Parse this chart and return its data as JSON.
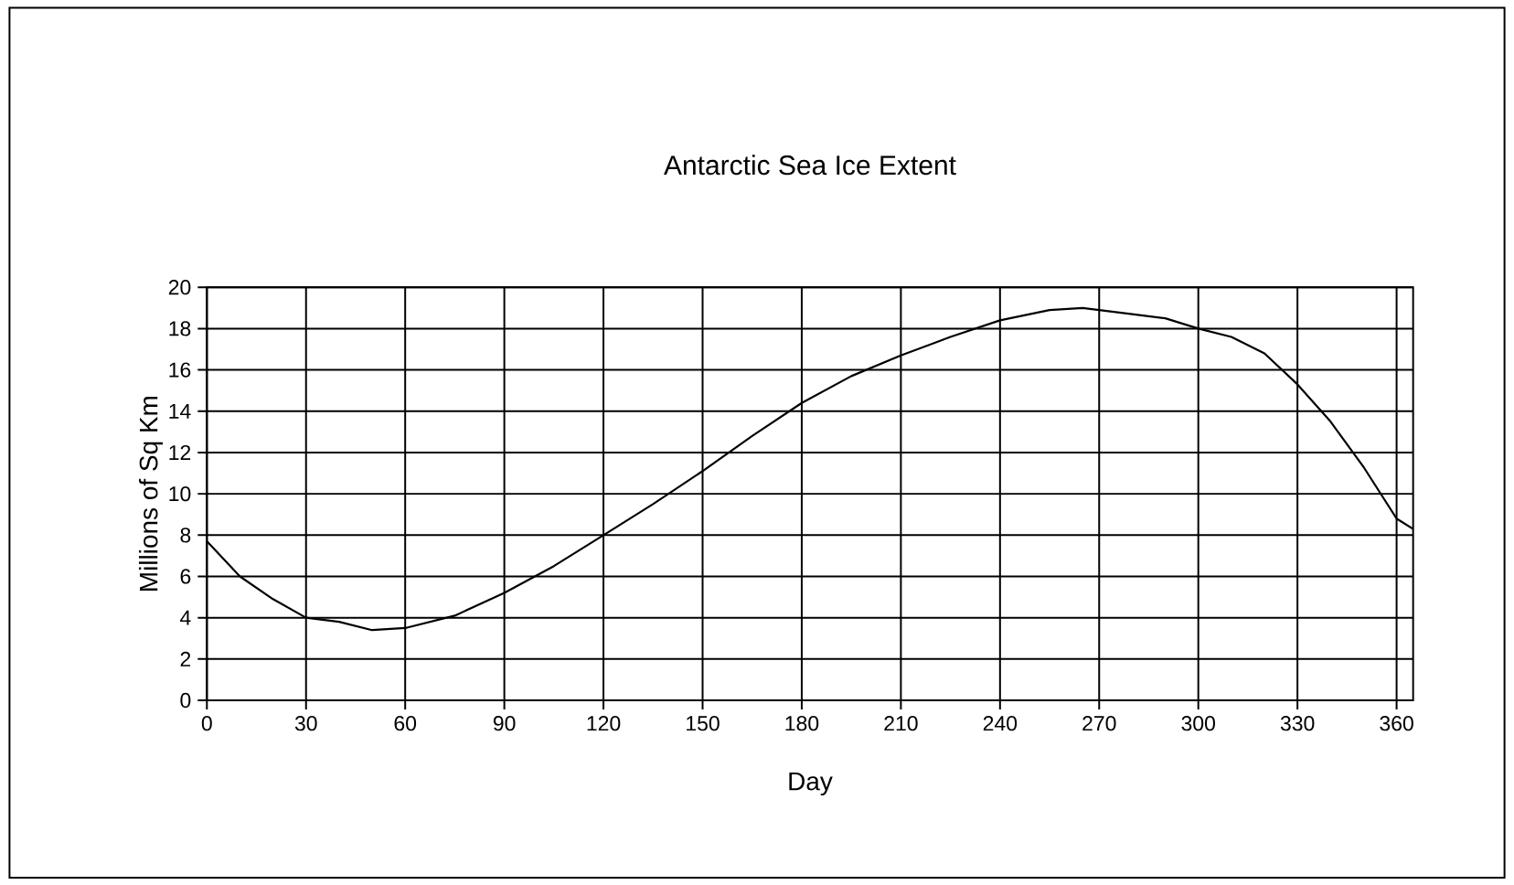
{
  "chart_data": {
    "type": "line",
    "title": "Antarctic Sea Ice Extent",
    "xlabel": "Day",
    "ylabel": "Millions of Sq Km",
    "xlim": [
      0,
      365
    ],
    "xticks": [
      0,
      30,
      60,
      90,
      120,
      150,
      180,
      210,
      240,
      270,
      300,
      330,
      360
    ],
    "ylim": [
      0,
      20
    ],
    "yticks": [
      0,
      2,
      4,
      6,
      8,
      10,
      12,
      14,
      16,
      18,
      20
    ],
    "grid": true,
    "marker": "none",
    "line_style": "solid",
    "series": [
      {
        "color": "#000000",
        "x": [
          0,
          10,
          20,
          30,
          40,
          50,
          60,
          75,
          90,
          105,
          120,
          135,
          150,
          165,
          180,
          195,
          210,
          225,
          240,
          255,
          265,
          280,
          290,
          300,
          310,
          320,
          330,
          340,
          350,
          360,
          365
        ],
        "values": [
          7.7,
          6.0,
          4.9,
          4.0,
          3.8,
          3.4,
          3.5,
          4.1,
          5.2,
          6.5,
          8.0,
          9.5,
          11.1,
          12.8,
          14.4,
          15.7,
          16.7,
          17.6,
          18.4,
          18.9,
          19.0,
          18.7,
          18.5,
          18.0,
          17.6,
          16.8,
          15.3,
          13.5,
          11.3,
          8.8,
          8.3
        ]
      }
    ]
  }
}
